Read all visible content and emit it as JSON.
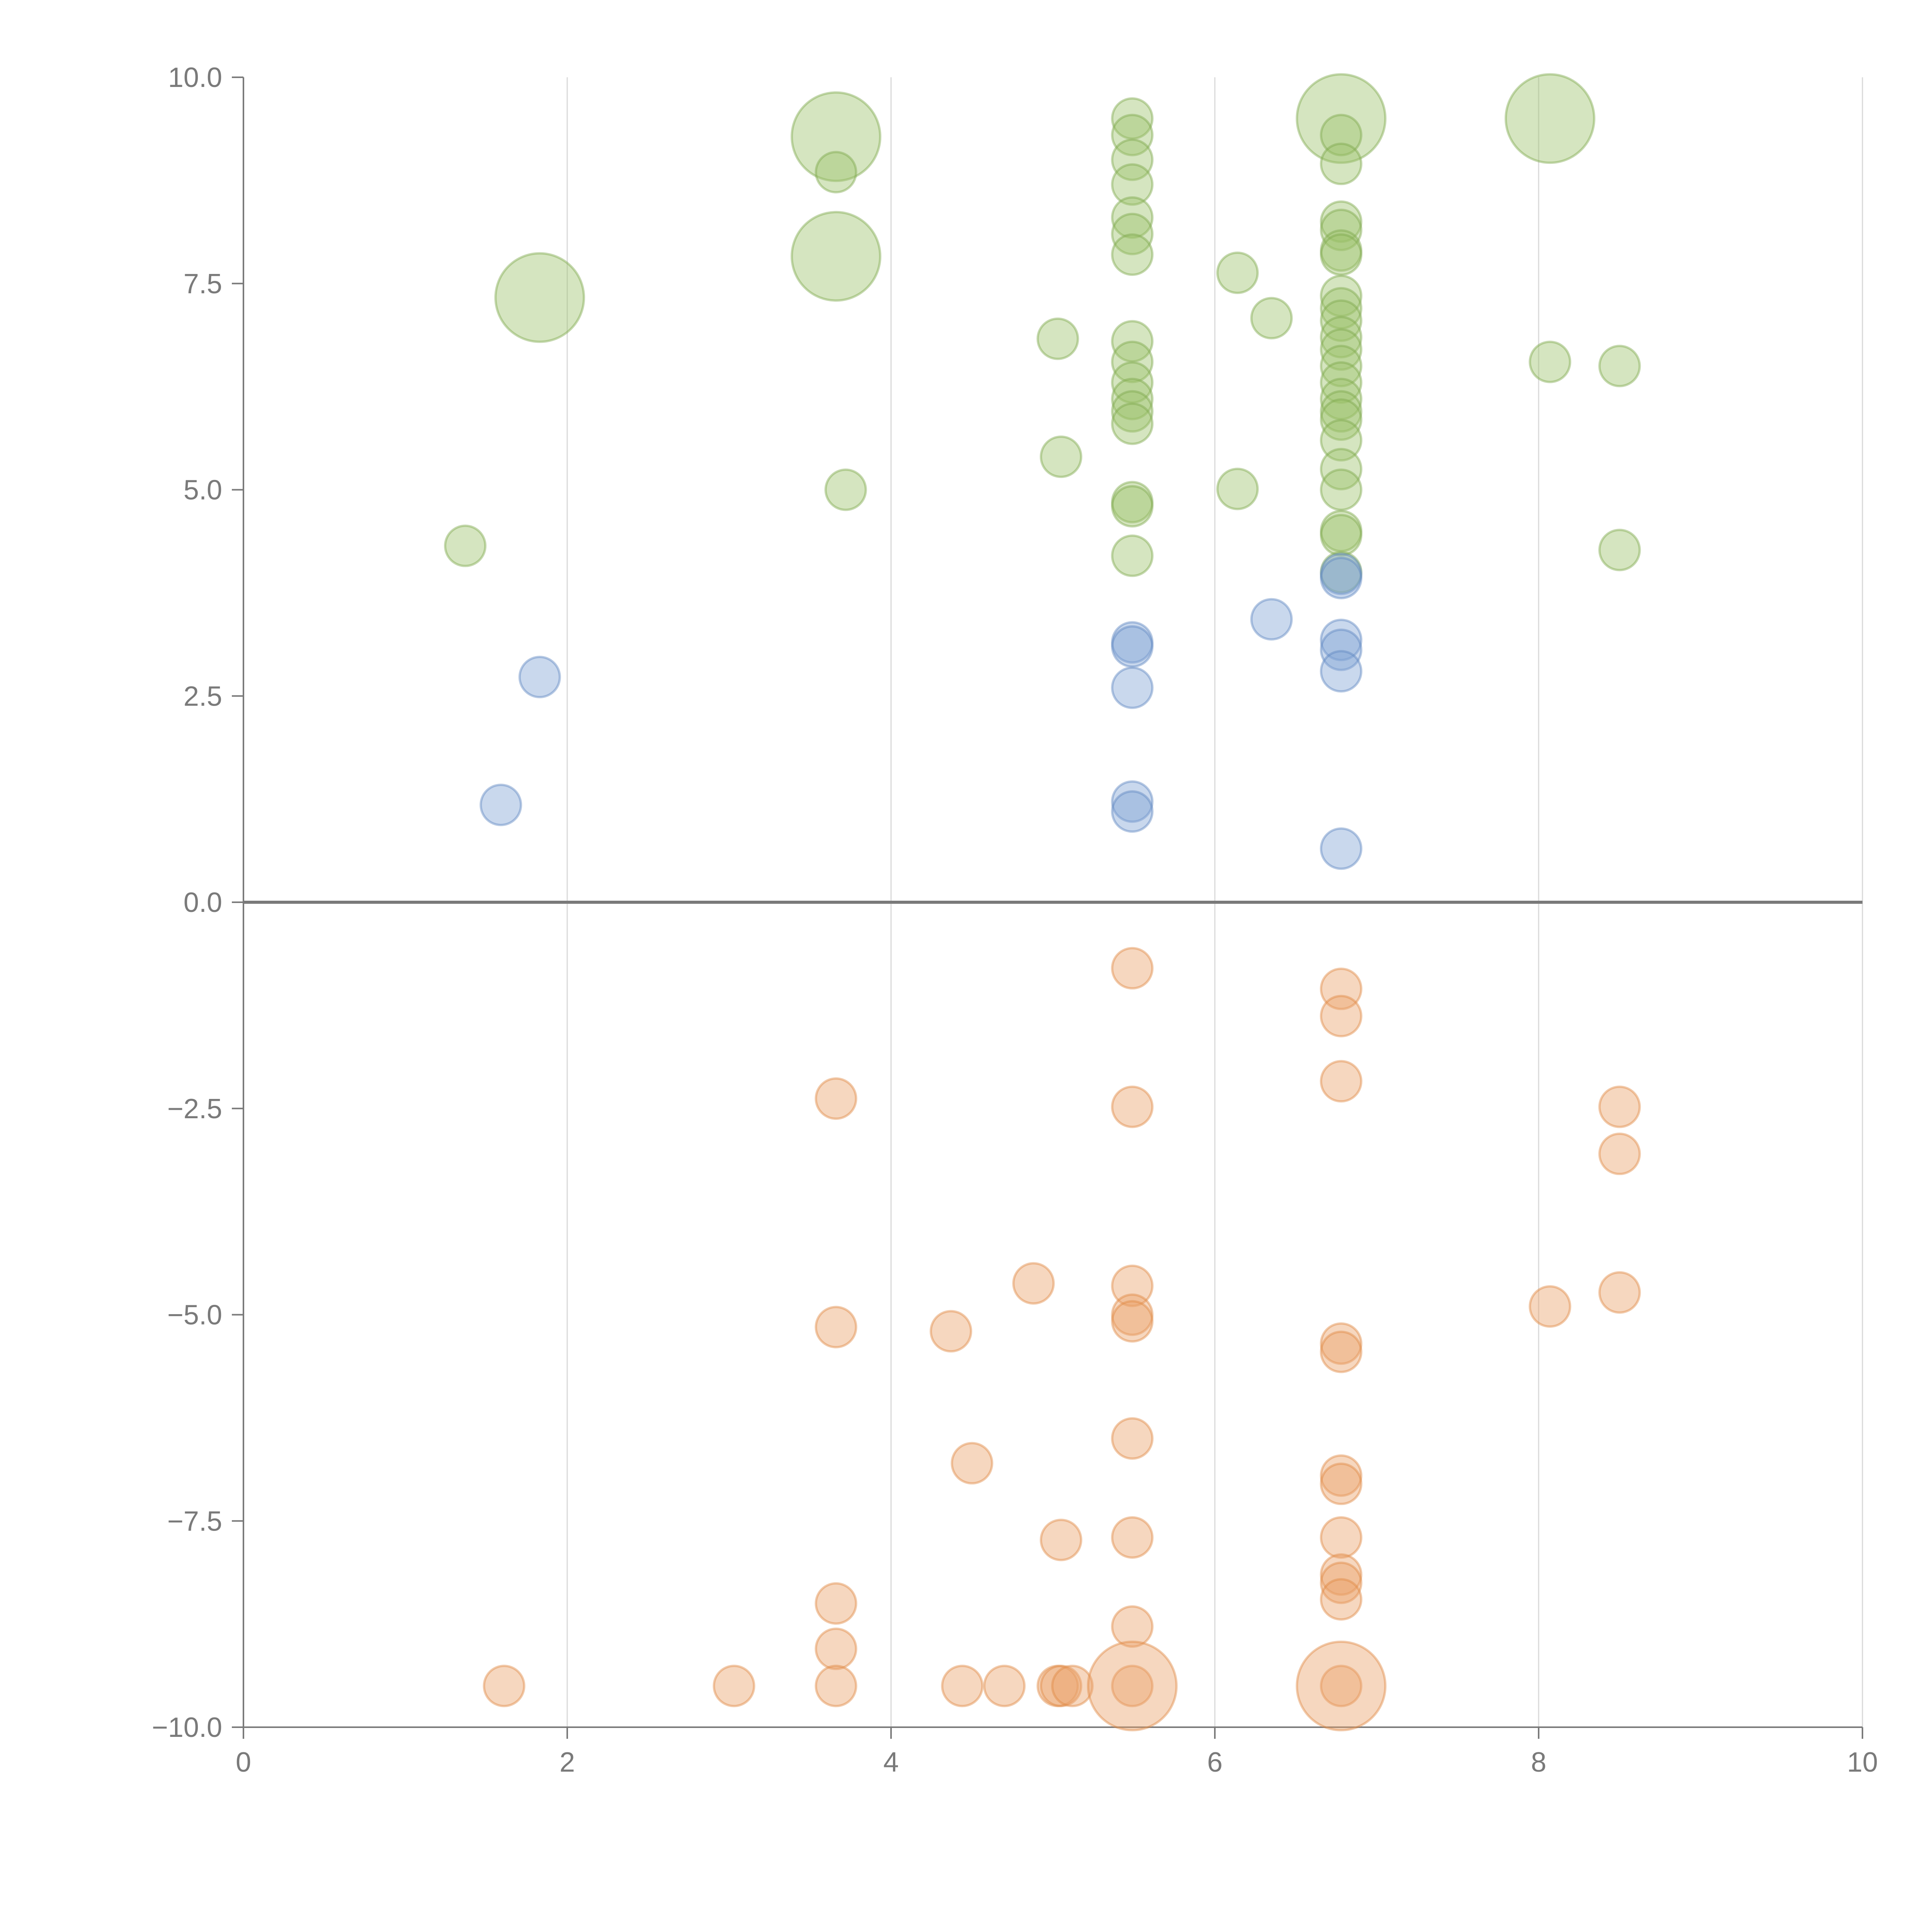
{
  "chart_data": {
    "type": "scatter",
    "title": "",
    "xlabel": "",
    "ylabel": "",
    "xlim": [
      0,
      10
    ],
    "ylim": [
      -10,
      10
    ],
    "x_ticks": [
      0,
      2,
      4,
      6,
      8,
      10
    ],
    "x_tick_labels": [
      "0",
      "2",
      "4",
      "6",
      "8",
      "10"
    ],
    "y_ticks": [
      10,
      7.5,
      5,
      2.5,
      0,
      -2.5,
      -5,
      -7.5,
      -10
    ],
    "y_tick_labels": [
      "10.0",
      "7.5",
      "5.0",
      "2.5",
      "0.0",
      "−2.5",
      "−5.0",
      "−7.5",
      "−10.0"
    ],
    "grid": "vertical",
    "legend": "none",
    "series": [
      {
        "color": "#9bc26a",
        "stroke": "#7fa84e",
        "points": [
          [
            1.37,
            4.32,
            1
          ],
          [
            1.83,
            7.33,
            2.2
          ],
          [
            3.66,
            9.28,
            2.2
          ],
          [
            3.66,
            8.85,
            1
          ],
          [
            3.66,
            7.83,
            2.2
          ],
          [
            3.72,
            5.0,
            1
          ],
          [
            5.03,
            6.83,
            1
          ],
          [
            5.05,
            5.4,
            1
          ],
          [
            5.49,
            9.5,
            1
          ],
          [
            5.49,
            9.3,
            1
          ],
          [
            5.49,
            9.0,
            1
          ],
          [
            5.49,
            8.7,
            1
          ],
          [
            5.49,
            8.3,
            1
          ],
          [
            5.49,
            8.1,
            1
          ],
          [
            5.49,
            7.85,
            1
          ],
          [
            5.49,
            6.8,
            1
          ],
          [
            5.49,
            6.55,
            1
          ],
          [
            5.49,
            6.3,
            1
          ],
          [
            5.49,
            6.1,
            1
          ],
          [
            5.49,
            5.95,
            1
          ],
          [
            5.49,
            5.8,
            1
          ],
          [
            5.49,
            4.85,
            1
          ],
          [
            5.49,
            4.8,
            1
          ],
          [
            5.49,
            4.2,
            1
          ],
          [
            6.14,
            7.63,
            1
          ],
          [
            6.14,
            5.01,
            1
          ],
          [
            6.35,
            7.08,
            1
          ],
          [
            6.78,
            9.5,
            2.2
          ],
          [
            6.78,
            9.3,
            1
          ],
          [
            6.78,
            8.95,
            1
          ],
          [
            6.78,
            8.25,
            1
          ],
          [
            6.78,
            8.15,
            1
          ],
          [
            6.78,
            7.9,
            1
          ],
          [
            6.78,
            7.85,
            1
          ],
          [
            6.78,
            7.35,
            1
          ],
          [
            6.78,
            7.2,
            1
          ],
          [
            6.78,
            7.05,
            1
          ],
          [
            6.78,
            6.85,
            1
          ],
          [
            6.78,
            6.7,
            1
          ],
          [
            6.78,
            6.5,
            1
          ],
          [
            6.78,
            6.3,
            1
          ],
          [
            6.78,
            6.1,
            1
          ],
          [
            6.78,
            5.95,
            1
          ],
          [
            6.78,
            5.85,
            1
          ],
          [
            6.78,
            5.6,
            1
          ],
          [
            6.78,
            5.25,
            1
          ],
          [
            6.78,
            5.0,
            1
          ],
          [
            6.78,
            4.5,
            1
          ],
          [
            6.78,
            4.45,
            1
          ],
          [
            6.78,
            4.0,
            1
          ],
          [
            8.07,
            9.5,
            2.2
          ],
          [
            8.07,
            6.55,
            1
          ],
          [
            8.5,
            6.5,
            1
          ],
          [
            8.5,
            4.27,
            1
          ]
        ]
      },
      {
        "color": "#7ea2d3",
        "stroke": "#5f87c2",
        "points": [
          [
            1.59,
            1.18,
            1
          ],
          [
            1.83,
            2.73,
            1
          ],
          [
            5.49,
            3.15,
            1
          ],
          [
            5.49,
            3.1,
            1
          ],
          [
            5.49,
            2.6,
            1
          ],
          [
            5.49,
            1.22,
            1
          ],
          [
            5.49,
            1.1,
            1
          ],
          [
            6.35,
            3.43,
            1
          ],
          [
            6.78,
            3.98,
            1
          ],
          [
            6.78,
            3.93,
            1
          ],
          [
            6.78,
            3.18,
            1
          ],
          [
            6.78,
            3.06,
            1
          ],
          [
            6.78,
            2.8,
            1
          ],
          [
            6.78,
            0.65,
            1
          ]
        ]
      },
      {
        "color": "#e9a066",
        "stroke": "#e08a45",
        "points": [
          [
            1.61,
            -9.5,
            1
          ],
          [
            3.03,
            -9.5,
            1
          ],
          [
            3.66,
            -2.38,
            1
          ],
          [
            3.66,
            -5.15,
            1
          ],
          [
            3.66,
            -8.5,
            1
          ],
          [
            3.66,
            -9.05,
            1
          ],
          [
            3.66,
            -9.5,
            1
          ],
          [
            4.37,
            -5.2,
            1
          ],
          [
            4.44,
            -9.5,
            1
          ],
          [
            4.5,
            -6.8,
            1
          ],
          [
            4.7,
            -9.5,
            1
          ],
          [
            4.88,
            -4.62,
            1
          ],
          [
            5.03,
            -9.5,
            1
          ],
          [
            5.05,
            -7.73,
            1
          ],
          [
            5.05,
            -9.5,
            1
          ],
          [
            5.12,
            -9.5,
            1
          ],
          [
            5.49,
            -0.8,
            1
          ],
          [
            5.49,
            -2.48,
            1
          ],
          [
            5.49,
            -4.65,
            1
          ],
          [
            5.49,
            -5.0,
            1
          ],
          [
            5.49,
            -5.08,
            1
          ],
          [
            5.49,
            -6.5,
            1
          ],
          [
            5.49,
            -7.7,
            1
          ],
          [
            5.49,
            -8.78,
            1
          ],
          [
            5.49,
            -9.5,
            1
          ],
          [
            5.49,
            -9.5,
            2.2
          ],
          [
            6.78,
            -1.05,
            1
          ],
          [
            6.78,
            -1.38,
            1
          ],
          [
            6.78,
            -2.17,
            1
          ],
          [
            6.78,
            -5.35,
            1
          ],
          [
            6.78,
            -5.45,
            1
          ],
          [
            6.78,
            -6.95,
            1
          ],
          [
            6.78,
            -7.05,
            1
          ],
          [
            6.78,
            -7.7,
            1
          ],
          [
            6.78,
            -8.15,
            1
          ],
          [
            6.78,
            -8.25,
            1
          ],
          [
            6.78,
            -8.45,
            1
          ],
          [
            6.78,
            -9.5,
            1
          ],
          [
            6.78,
            -9.5,
            2.2
          ],
          [
            8.07,
            -4.9,
            1
          ],
          [
            8.5,
            -2.48,
            1
          ],
          [
            8.5,
            -3.05,
            1
          ],
          [
            8.5,
            -4.73,
            1
          ]
        ]
      }
    ]
  }
}
